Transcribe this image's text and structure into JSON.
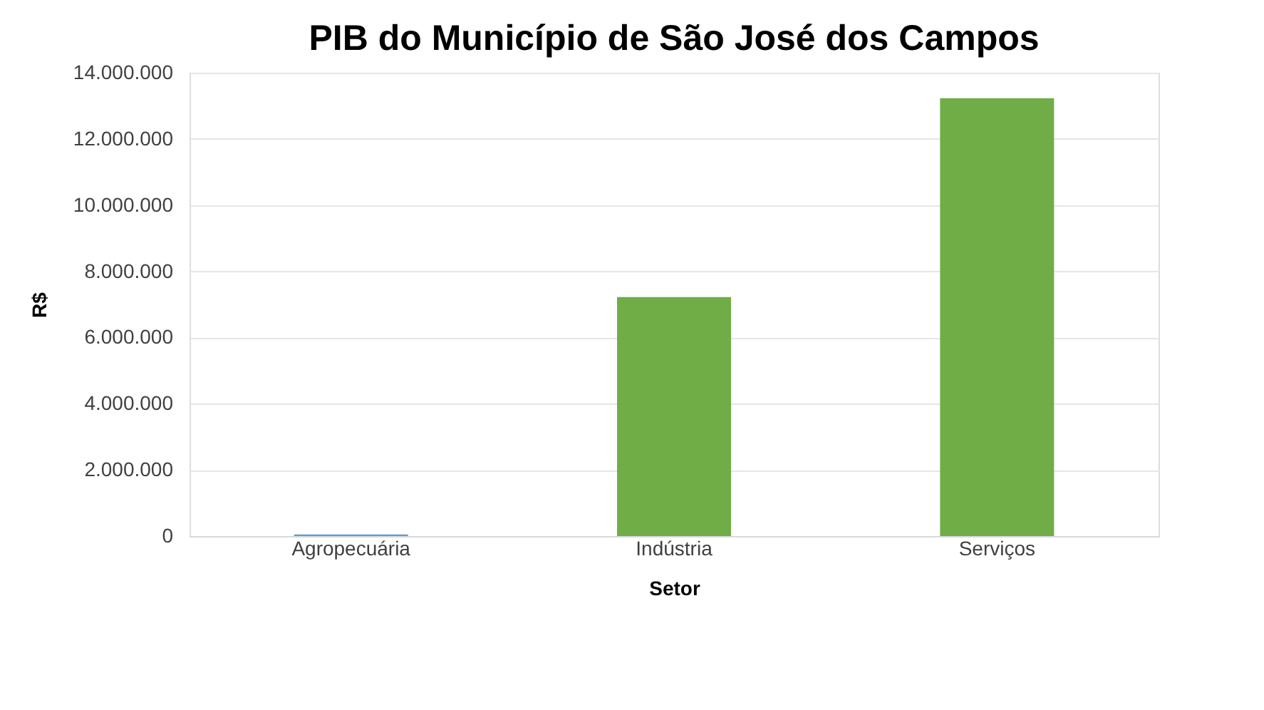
{
  "chart_data": {
    "type": "bar",
    "title": "PIB do Município de São José dos Campos",
    "xlabel": "Setor",
    "ylabel": "R$",
    "categories": [
      "Agropecuária",
      "Indústria",
      "Serviços"
    ],
    "values": [
      50000,
      7220000,
      13230000
    ],
    "colors": [
      "#5b9bd5",
      "#70ad47",
      "#70ad47"
    ],
    "ylim": [
      0,
      14000000
    ],
    "yticks": [
      {
        "value": 0,
        "label": "0"
      },
      {
        "value": 2000000,
        "label": "2.000.000"
      },
      {
        "value": 4000000,
        "label": "4.000.000"
      },
      {
        "value": 6000000,
        "label": "6.000.000"
      },
      {
        "value": 8000000,
        "label": "8.000.000"
      },
      {
        "value": 10000000,
        "label": "10.000.000"
      },
      {
        "value": 12000000,
        "label": "12.000.000"
      },
      {
        "value": 14000000,
        "label": "14.000.000"
      }
    ],
    "grid": "y",
    "legend": false
  }
}
